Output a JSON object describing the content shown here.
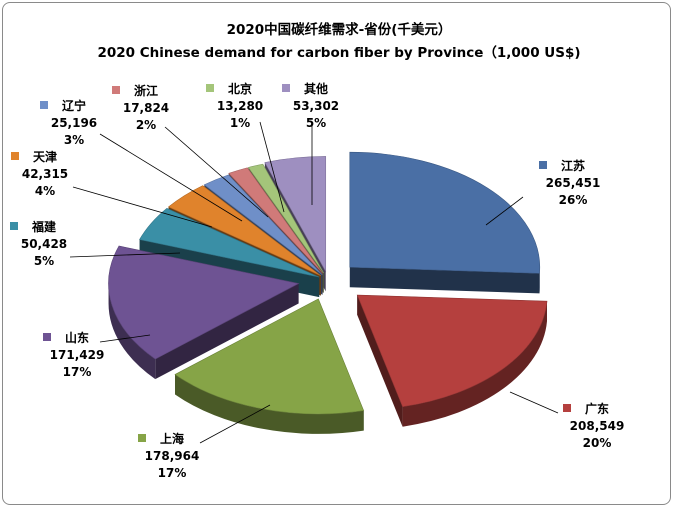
{
  "chart_data": {
    "type": "pie",
    "title_cn": "2020中国碳纤维需求-省份(千美元）",
    "title_en": "2020 Chinese demand for carbon fiber by Province（1,000 US$)",
    "slices": [
      {
        "name": "江苏",
        "value_label": "265,451",
        "value": 265451,
        "percent": "26%",
        "pct": 26,
        "color": "#4a6fa5"
      },
      {
        "name": "广东",
        "value_label": "208,549",
        "value": 208549,
        "percent": "20%",
        "pct": 20,
        "color": "#b5403e"
      },
      {
        "name": "上海",
        "value_label": "178,964",
        "value": 178964,
        "percent": "17%",
        "pct": 17,
        "color": "#86a447"
      },
      {
        "name": "山东",
        "value_label": "171,429",
        "value": 171429,
        "percent": "17%",
        "pct": 17,
        "color": "#6e5393"
      },
      {
        "name": "福建",
        "value_label": "50,428",
        "value": 50428,
        "percent": "5%",
        "pct": 5,
        "color": "#3a8fa6"
      },
      {
        "name": "天津",
        "value_label": "42,315",
        "value": 42315,
        "percent": "4%",
        "pct": 4,
        "color": "#e0832c"
      },
      {
        "name": "辽宁",
        "value_label": "25,196",
        "value": 25196,
        "percent": "3%",
        "pct": 3,
        "color": "#6f8fc8"
      },
      {
        "name": "浙江",
        "value_label": "17,824",
        "value": 17824,
        "percent": "2%",
        "pct": 2,
        "color": "#d07a79"
      },
      {
        "name": "北京",
        "value_label": "13,280",
        "value": 13280,
        "percent": "1%",
        "pct": 1,
        "color": "#a4c57a"
      },
      {
        "name": "其他",
        "value_label": "53,302",
        "value": 53302,
        "percent": "5%",
        "pct": 5,
        "color": "#9e8fc0"
      }
    ]
  }
}
